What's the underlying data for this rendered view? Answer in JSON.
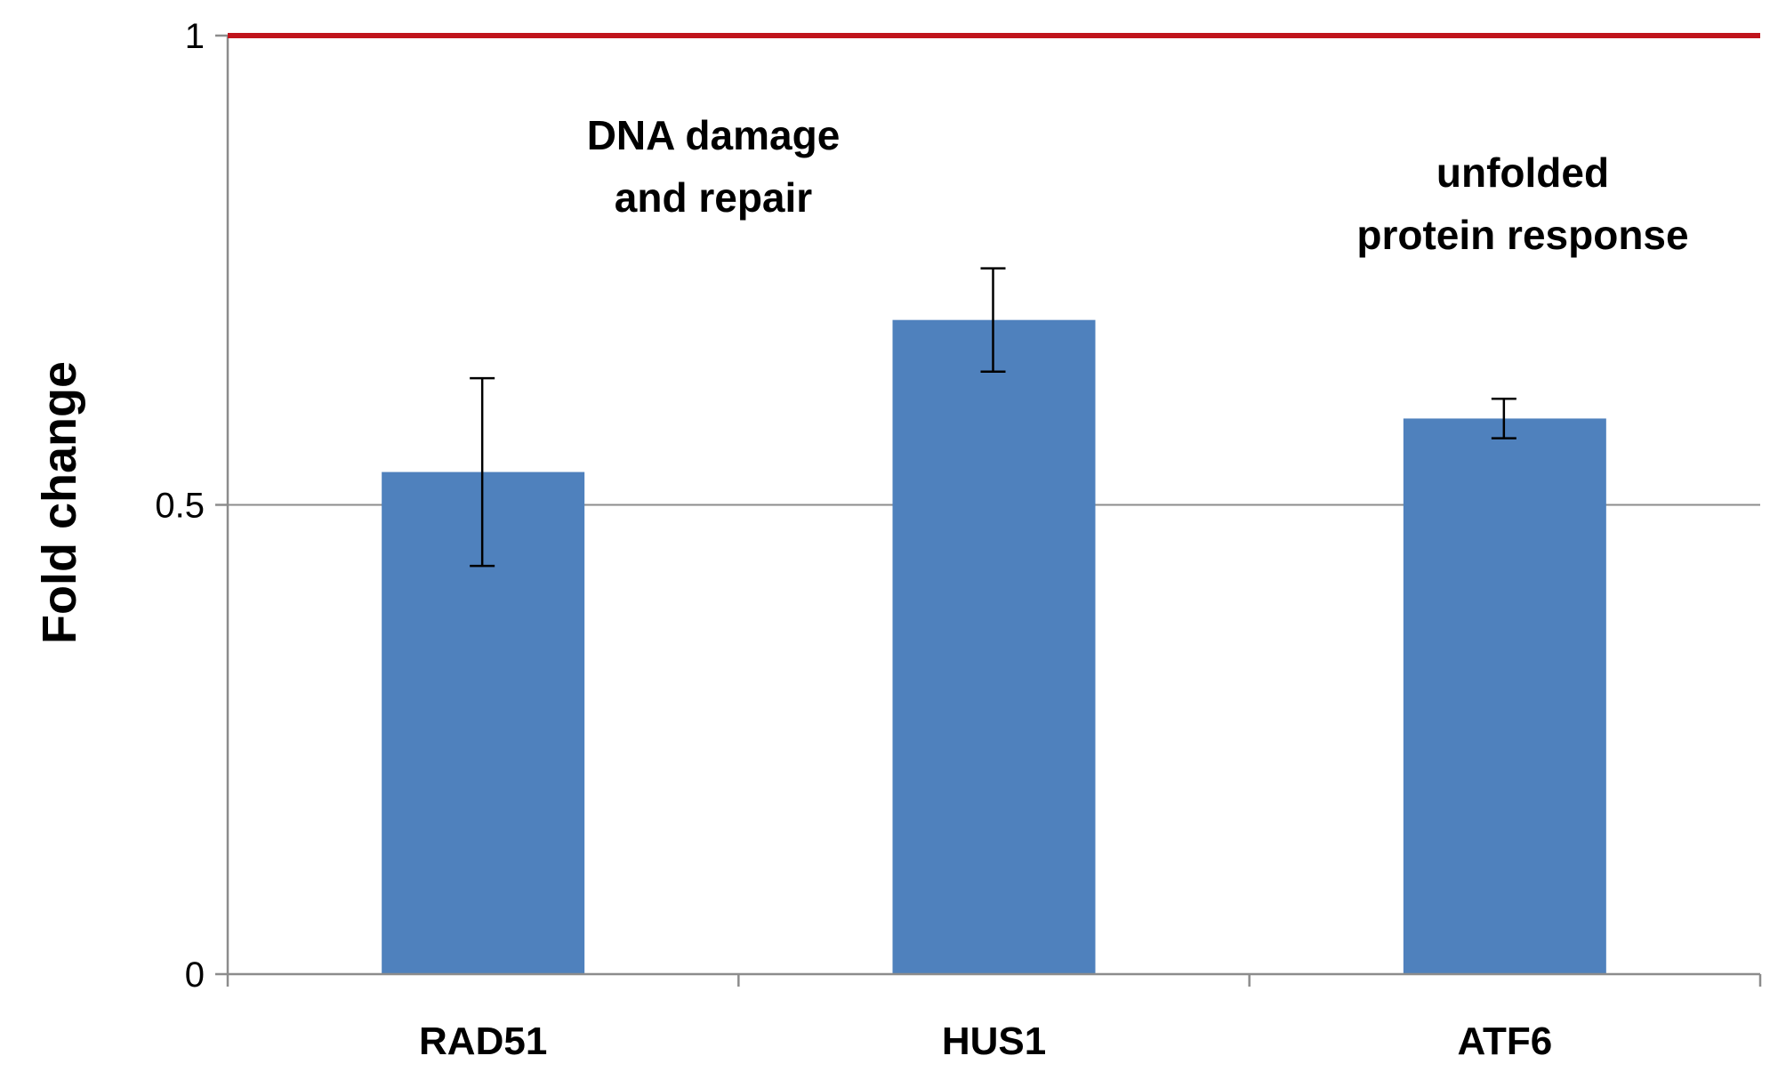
{
  "chart_data": {
    "type": "bar",
    "categories": [
      "RAD51",
      "HUS1",
      "ATF6"
    ],
    "values": [
      0.535,
      0.697,
      0.592
    ],
    "error": [
      0.1,
      0.055,
      0.021
    ],
    "title": "",
    "xlabel": "",
    "ylabel": "Fold change",
    "ylim": [
      0,
      1
    ],
    "yticks": [
      {
        "value": 0,
        "label": "0"
      },
      {
        "value": 0.5,
        "label": "0.5"
      },
      {
        "value": 1,
        "label": "1"
      }
    ],
    "gridlines": [
      0.5
    ],
    "reference_line": {
      "value": 1,
      "color": "#c0141c"
    },
    "bar_color": "#4f81bd",
    "annotations": [
      {
        "lines": [
          "DNA damage",
          "and repair"
        ],
        "over_category": "RAD51-HUS1"
      },
      {
        "lines": [
          "unfolded",
          "protein response"
        ],
        "over_category": "ATF6"
      }
    ],
    "grid": true,
    "legend": "none"
  }
}
